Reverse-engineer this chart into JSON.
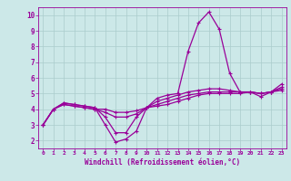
{
  "xlabel": "Windchill (Refroidissement éolien,°C)",
  "x_values": [
    0,
    1,
    2,
    3,
    4,
    5,
    6,
    7,
    8,
    9,
    10,
    11,
    12,
    13,
    14,
    15,
    16,
    17,
    18,
    19,
    20,
    21,
    22,
    23
  ],
  "line1": [
    3.0,
    4.0,
    4.4,
    4.3,
    4.2,
    4.1,
    3.0,
    1.9,
    2.1,
    2.6,
    4.1,
    4.7,
    4.9,
    5.0,
    7.7,
    9.5,
    10.2,
    9.1,
    6.3,
    5.1,
    5.1,
    4.8,
    5.1,
    5.6
  ],
  "line2": [
    3.0,
    4.0,
    4.4,
    4.3,
    4.2,
    4.1,
    3.5,
    2.5,
    2.5,
    3.5,
    4.1,
    4.5,
    4.7,
    4.9,
    5.1,
    5.2,
    5.3,
    5.3,
    5.2,
    5.1,
    5.1,
    5.0,
    5.1,
    5.4
  ],
  "line3": [
    3.0,
    4.0,
    4.3,
    4.2,
    4.1,
    4.0,
    3.8,
    3.5,
    3.5,
    3.7,
    4.1,
    4.3,
    4.5,
    4.7,
    4.9,
    5.0,
    5.1,
    5.1,
    5.1,
    5.1,
    5.1,
    5.0,
    5.1,
    5.3
  ],
  "line4": [
    3.0,
    4.0,
    4.3,
    4.2,
    4.1,
    4.0,
    4.0,
    3.8,
    3.8,
    3.9,
    4.1,
    4.2,
    4.3,
    4.5,
    4.7,
    4.9,
    5.0,
    5.0,
    5.0,
    5.0,
    5.1,
    5.0,
    5.1,
    5.2
  ],
  "line_color": "#990099",
  "bg_color": "#cce8e8",
  "grid_color": "#aacccc",
  "ylim": [
    1.5,
    10.5
  ],
  "xlim": [
    -0.5,
    23.5
  ],
  "yticks": [
    2,
    3,
    4,
    5,
    6,
    7,
    8,
    9,
    10
  ]
}
